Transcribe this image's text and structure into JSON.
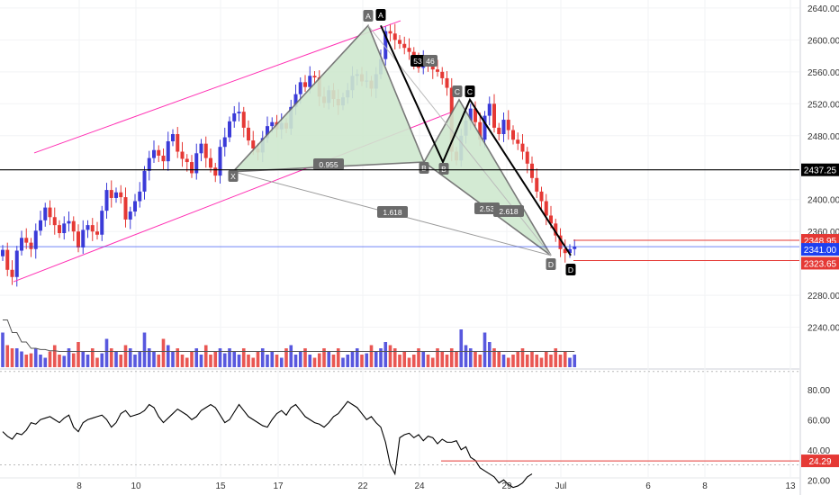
{
  "colors": {
    "up": "#3b3bd8",
    "down": "#e53935",
    "pattern_fill": "#cfe8cf",
    "pattern_stroke": "#6b6b6b",
    "channel": "#ff2fb3",
    "axis_text": "#333333",
    "grid": "#f2f3f5",
    "rsi_line": "#000000",
    "level_red": "#e53935",
    "level_blue": "#1e3ff0"
  },
  "chart_data": [
    {
      "type": "candlestick",
      "title": "",
      "ylim": [
        2190,
        2650
      ],
      "y_ticks": [
        "2640.00",
        "2600.00",
        "2560.00",
        "2520.00",
        "2480.00",
        "2437.25",
        "2400.00",
        "2360.00",
        "2348.95",
        "2341.00",
        "2323.65",
        "2280.00",
        "2240.00"
      ],
      "x_ticks": [
        "8",
        "10",
        "15",
        "17",
        "22",
        "24",
        "29",
        "Jul",
        "6",
        "8",
        "13"
      ],
      "price_labels": [
        {
          "text": "2437.25",
          "style": "black"
        },
        {
          "text": "2348.95",
          "style": "red"
        },
        {
          "text": "2341.00",
          "style": "blue"
        },
        {
          "text": "2323.65",
          "style": "red"
        }
      ],
      "pattern": {
        "points": {
          "X": 2435,
          "A": 2618,
          "B": 2447,
          "C": 2525,
          "D": 2330
        },
        "labels": [
          "X",
          "A",
          "B",
          "C",
          "D"
        ],
        "ratios": [
          "0.955",
          "1.618",
          "2.53",
          "2.618"
        ],
        "box_labels": [
          "53",
          "46"
        ]
      },
      "channel": {
        "lower_start": 2297,
        "lower_end": 2475,
        "upper_start": 2340,
        "upper_end": 2624
      },
      "closes": [
        2337,
        2312,
        2303,
        2336,
        2352,
        2346,
        2338,
        2361,
        2374,
        2390,
        2378,
        2368,
        2358,
        2370,
        2373,
        2360,
        2340,
        2362,
        2368,
        2360,
        2356,
        2386,
        2412,
        2402,
        2409,
        2403,
        2375,
        2385,
        2398,
        2410,
        2436,
        2452,
        2462,
        2455,
        2448,
        2473,
        2482,
        2460,
        2451,
        2447,
        2433,
        2458,
        2470,
        2452,
        2440,
        2430,
        2466,
        2478,
        2498,
        2508,
        2510,
        2490,
        2474,
        2464,
        2459,
        2477,
        2492,
        2497,
        2488,
        2496,
        2489,
        2516,
        2532,
        2547,
        2541,
        2555,
        2553,
        2529,
        2521,
        2537,
        2526,
        2518,
        2528,
        2537,
        2555,
        2557,
        2548,
        2549,
        2539,
        2557,
        2576,
        2611,
        2608,
        2600,
        2595,
        2590,
        2585,
        2575,
        2565,
        2575,
        2570,
        2563,
        2560,
        2552,
        2540,
        2460,
        2449,
        2480,
        2499,
        2514,
        2497,
        2475,
        2505,
        2520,
        2490,
        2482,
        2500,
        2487,
        2475,
        2470,
        2460,
        2445,
        2427,
        2410,
        2398,
        2380,
        2370,
        2355,
        2338,
        2333,
        2338,
        2341
      ],
      "volume": [
        0.55,
        0.35,
        0.3,
        0.3,
        0.25,
        0.2,
        0.22,
        0.3,
        0.2,
        0.15,
        0.25,
        0.35,
        0.2,
        0.18,
        0.3,
        0.22,
        0.4,
        0.25,
        0.2,
        0.3,
        0.15,
        0.22,
        0.45,
        0.3,
        0.25,
        0.2,
        0.35,
        0.3,
        0.2,
        0.25,
        0.55,
        0.3,
        0.25,
        0.2,
        0.45,
        0.35,
        0.25,
        0.3,
        0.2,
        0.15,
        0.25,
        0.3,
        0.2,
        0.35,
        0.2,
        0.25,
        0.3,
        0.22,
        0.3,
        0.25,
        0.2,
        0.3,
        0.2,
        0.15,
        0.25,
        0.3,
        0.2,
        0.25,
        0.2,
        0.15,
        0.3,
        0.35,
        0.2,
        0.25,
        0.3,
        0.2,
        0.15,
        0.22,
        0.3,
        0.25,
        0.2,
        0.3,
        0.15,
        0.2,
        0.25,
        0.3,
        0.2,
        0.22,
        0.35,
        0.25,
        0.3,
        0.4,
        0.35,
        0.3,
        0.2,
        0.25,
        0.15,
        0.2,
        0.3,
        0.25,
        0.2,
        0.15,
        0.3,
        0.25,
        0.2,
        0.3,
        0.25,
        0.6,
        0.35,
        0.3,
        0.25,
        0.2,
        0.55,
        0.4,
        0.3,
        0.25,
        0.2,
        0.15,
        0.2,
        0.25,
        0.3,
        0.2,
        0.25,
        0.2,
        0.15,
        0.25,
        0.2,
        0.3,
        0.2,
        0.25,
        0.15,
        0.2
      ],
      "volume_ma": [
        0.75,
        0.55,
        0.4,
        0.3,
        0.28,
        0.26,
        0.25,
        0.25,
        0.25,
        0.25
      ]
    },
    {
      "type": "line",
      "title": "",
      "ylim": [
        10,
        90
      ],
      "y_ticks": [
        "80.00",
        "60.00",
        "40.00",
        "20.00"
      ],
      "last_value_label": "24.29",
      "values": [
        52,
        49,
        47,
        51,
        50,
        53,
        58,
        57,
        60,
        61,
        62,
        60,
        58,
        61,
        63,
        55,
        52,
        58,
        60,
        61,
        62,
        63,
        60,
        55,
        58,
        64,
        66,
        62,
        63,
        64,
        66,
        70,
        68,
        62,
        58,
        61,
        64,
        67,
        65,
        63,
        60,
        62,
        66,
        68,
        70,
        68,
        63,
        58,
        60,
        65,
        70,
        66,
        62,
        60,
        58,
        56,
        55,
        60,
        64,
        66,
        63,
        68,
        70,
        66,
        62,
        60,
        58,
        57,
        55,
        58,
        62,
        64,
        68,
        72,
        70,
        68,
        64,
        60,
        62,
        58,
        55,
        45,
        30,
        24,
        48,
        50,
        51,
        48,
        50,
        46,
        49,
        48,
        44,
        47,
        45,
        45,
        46,
        40,
        42,
        35,
        33,
        28,
        26,
        24,
        22,
        18,
        20,
        17,
        15,
        16,
        18,
        22,
        24
      ]
    }
  ]
}
